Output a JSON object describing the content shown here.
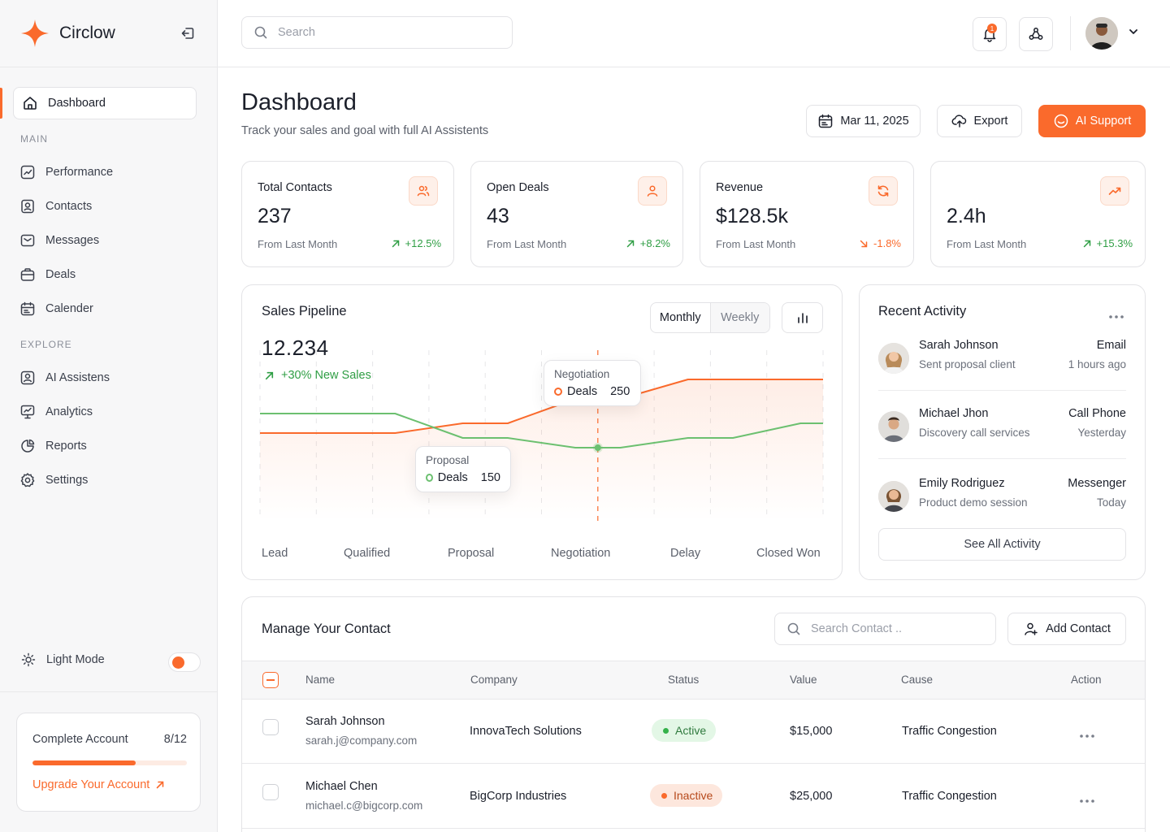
{
  "brand": {
    "name": "Circlow"
  },
  "sidebar": {
    "dashboard_label": "Dashboard",
    "main_label": "MAIN",
    "main_items": [
      "Performance",
      "Contacts",
      "Messages",
      "Deals",
      "Calender"
    ],
    "explore_label": "EXPLORE",
    "explore_items": [
      "AI Assistens",
      "Analytics",
      "Reports",
      "Settings"
    ],
    "light_mode_label": "Light Mode",
    "account": {
      "title": "Complete Account",
      "progress_text": "8/12",
      "progress": 0.667,
      "upgrade_label": "Upgrade Your Account"
    }
  },
  "topbar": {
    "search_placeholder": "Search",
    "notification_count": "1"
  },
  "header": {
    "title": "Dashboard",
    "subtitle": "Track your sales and goal with full AI Assistents",
    "date_label": "Mar 11, 2025",
    "export_label": "Export",
    "ai_support_label": "AI Support"
  },
  "stats": [
    {
      "title": "Total Contacts",
      "value": "237",
      "foot": "From Last Month",
      "change": "+12.5%",
      "direction": "up",
      "icon": "users-icon"
    },
    {
      "title": "Open Deals",
      "value": "43",
      "foot": "From Last Month",
      "change": "+8.2%",
      "direction": "up",
      "icon": "user-icon"
    },
    {
      "title": "Revenue",
      "value": "$128.5k",
      "foot": "From Last Month",
      "change": "-1.8%",
      "direction": "down",
      "icon": "refresh-icon"
    },
    {
      "title": "",
      "value": "2.4h",
      "foot": "From Last Month",
      "change": "+15.3%",
      "direction": "up",
      "icon": "trend-up-icon"
    }
  ],
  "pipeline": {
    "title": "Sales Pipeline",
    "toggle": [
      "Monthly",
      "Weekly"
    ],
    "total": "12.234",
    "change": "+30% New Sales",
    "tooltip_negotiation": {
      "title": "Negotiation",
      "series": "Deals",
      "value": "250"
    },
    "tooltip_proposal": {
      "title": "Proposal",
      "series": "Deals",
      "value": "150"
    }
  },
  "chart_data": {
    "type": "line",
    "categories": [
      "Lead",
      "Qualified",
      "Proposal",
      "Negotiation",
      "Delay",
      "Closed Won"
    ],
    "series": [
      {
        "color": "#fa6a2c",
        "values": [
          180,
          180,
          200,
          250,
          290,
          290
        ]
      },
      {
        "color": "#6cc070",
        "values": [
          220,
          220,
          170,
          150,
          170,
          200
        ]
      }
    ],
    "ylim": [
      0,
      350
    ],
    "grid": "vertical dashed",
    "highlight": "Negotiation"
  },
  "activity": {
    "title": "Recent Activity",
    "items": [
      {
        "name": "Sarah Johnson",
        "desc": "Sent proposal client",
        "type": "Email",
        "time": "1 hours ago"
      },
      {
        "name": "Michael Jhon",
        "desc": "Discovery call services",
        "type": "Call Phone",
        "time": "Yesterday"
      },
      {
        "name": "Emily Rodriguez",
        "desc": "Product demo session",
        "type": "Messenger",
        "time": "Today"
      }
    ],
    "see_all_label": "See All Activity"
  },
  "contacts": {
    "title": "Manage Your Contact",
    "search_placeholder": "Search Contact ..",
    "add_label": "Add Contact",
    "columns": [
      "Name",
      "Company",
      "Status",
      "Value",
      "Cause",
      "Action"
    ],
    "rows": [
      {
        "name": "Sarah Johnson",
        "email": "sarah.j@company.com",
        "company": "InnovaTech Solutions",
        "status": "Active",
        "value": "$15,000",
        "cause": "Traffic Congestion"
      },
      {
        "name": "Michael Chen",
        "email": "michael.c@bigcorp.com",
        "company": "BigCorp Industries",
        "status": "Inactive",
        "value": "$25,000",
        "cause": "Traffic Congestion"
      }
    ]
  }
}
